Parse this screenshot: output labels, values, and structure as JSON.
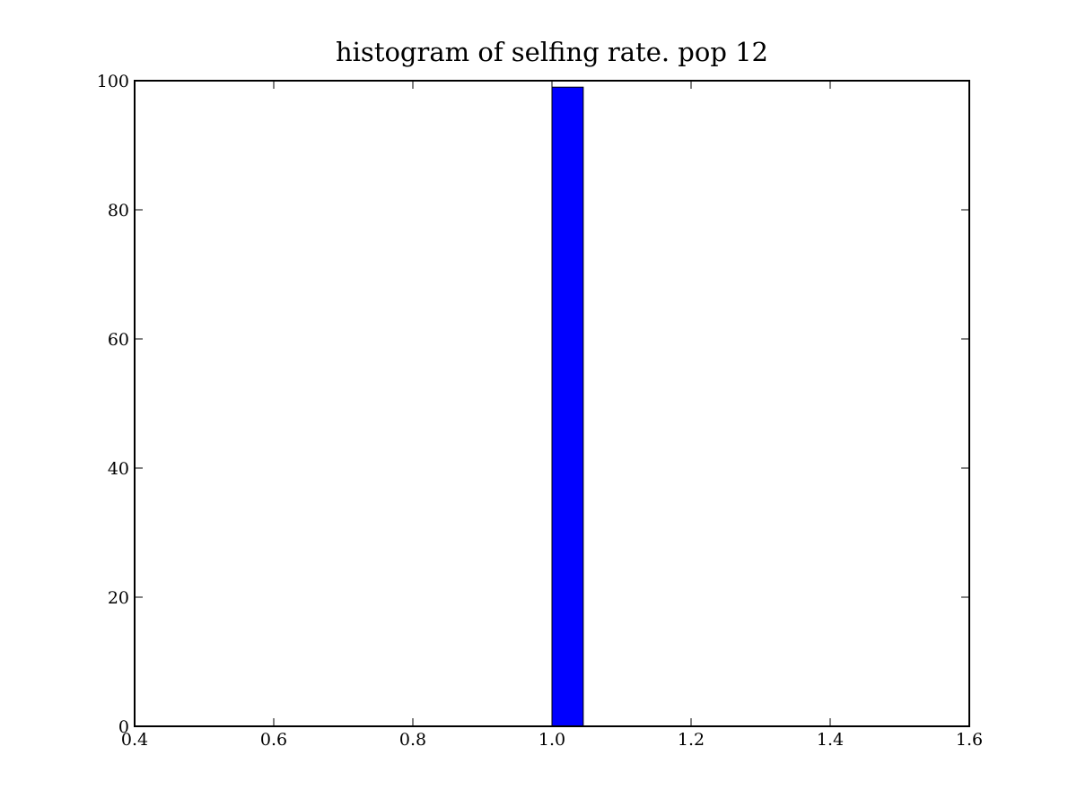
{
  "chart_data": {
    "type": "bar",
    "title": "histogram of selfing rate. pop 12",
    "xlabel": "",
    "ylabel": "",
    "xlim": [
      0.4,
      1.6
    ],
    "ylim": [
      0,
      100
    ],
    "xticks": [
      0.4,
      0.6,
      0.8,
      1.0,
      1.2,
      1.4,
      1.6
    ],
    "xtick_labels": [
      "0.4",
      "0.6",
      "0.8",
      "1.0",
      "1.2",
      "1.4",
      "1.6"
    ],
    "yticks": [
      0,
      20,
      40,
      60,
      80,
      100
    ],
    "ytick_labels": [
      "0",
      "20",
      "40",
      "60",
      "80",
      "100"
    ],
    "bins": [
      {
        "x0": 1.0,
        "x1": 1.045,
        "count": 99
      }
    ],
    "bar_color": "#0000ff",
    "grid": false,
    "legend": "none"
  }
}
